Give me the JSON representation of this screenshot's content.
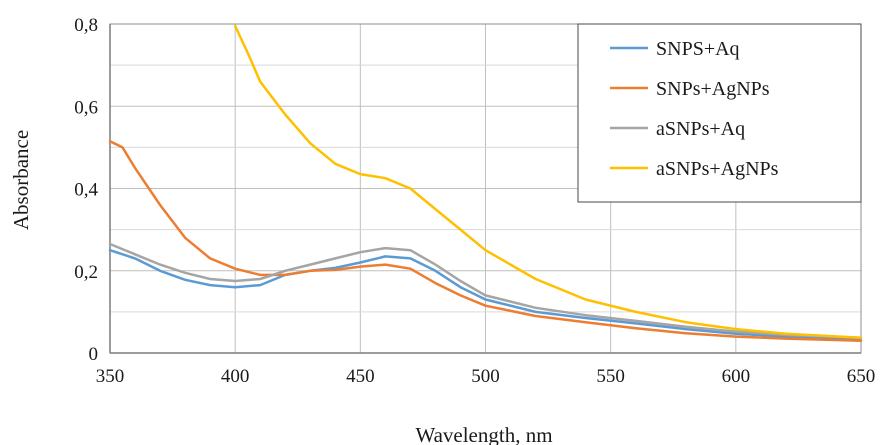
{
  "chart_data": {
    "type": "line",
    "xlabel": "Wavelength, nm",
    "ylabel": "Absorbance",
    "xlim": [
      350,
      650
    ],
    "ylim": [
      0,
      0.8
    ],
    "x_ticks": [
      350,
      400,
      450,
      500,
      550,
      600,
      650
    ],
    "x_tick_labels": [
      "350",
      "400",
      "450",
      "500",
      "550",
      "600",
      "650"
    ],
    "y_ticks": [
      0,
      0.2,
      0.4,
      0.6,
      0.8
    ],
    "y_tick_labels": [
      "0",
      "0,2",
      "0,4",
      "0,6",
      "0,8"
    ],
    "grid": true,
    "legend_position": "top-right",
    "series": [
      {
        "name": "SNPS+Aq",
        "color": "#5B9BD5",
        "x": [
          350,
          360,
          370,
          380,
          390,
          400,
          410,
          420,
          430,
          440,
          450,
          460,
          470,
          480,
          490,
          500,
          520,
          540,
          560,
          580,
          600,
          620,
          650
        ],
        "y": [
          0.25,
          0.23,
          0.2,
          0.178,
          0.165,
          0.16,
          0.165,
          0.19,
          0.2,
          0.207,
          0.22,
          0.235,
          0.23,
          0.2,
          0.16,
          0.13,
          0.1,
          0.085,
          0.072,
          0.058,
          0.047,
          0.04,
          0.035
        ]
      },
      {
        "name": "SNPs+AgNPs",
        "color": "#ED7D31",
        "x": [
          350,
          355,
          360,
          370,
          380,
          390,
          400,
          410,
          420,
          430,
          440,
          450,
          460,
          470,
          480,
          490,
          500,
          520,
          540,
          560,
          580,
          600,
          620,
          650
        ],
        "y": [
          0.515,
          0.5,
          0.45,
          0.36,
          0.28,
          0.23,
          0.205,
          0.19,
          0.19,
          0.2,
          0.202,
          0.21,
          0.215,
          0.205,
          0.17,
          0.14,
          0.115,
          0.09,
          0.075,
          0.06,
          0.048,
          0.04,
          0.035,
          0.03
        ]
      },
      {
        "name": "aSNPs+Aq",
        "color": "#A5A5A5",
        "x": [
          350,
          360,
          370,
          380,
          390,
          400,
          410,
          420,
          430,
          440,
          450,
          460,
          470,
          480,
          490,
          500,
          520,
          540,
          560,
          580,
          600,
          620,
          650
        ],
        "y": [
          0.265,
          0.24,
          0.215,
          0.195,
          0.18,
          0.175,
          0.18,
          0.2,
          0.215,
          0.23,
          0.245,
          0.255,
          0.25,
          0.215,
          0.175,
          0.14,
          0.11,
          0.092,
          0.078,
          0.064,
          0.052,
          0.044,
          0.037
        ]
      },
      {
        "name": "aSNPs+AgNPs",
        "color": "#FFC000",
        "x": [
          400,
          405,
          410,
          420,
          430,
          440,
          450,
          460,
          470,
          480,
          490,
          500,
          520,
          540,
          560,
          580,
          600,
          620,
          650
        ],
        "y": [
          0.795,
          0.73,
          0.66,
          0.58,
          0.51,
          0.46,
          0.435,
          0.425,
          0.4,
          0.35,
          0.3,
          0.25,
          0.18,
          0.13,
          0.1,
          0.075,
          0.058,
          0.047,
          0.037
        ]
      }
    ]
  }
}
